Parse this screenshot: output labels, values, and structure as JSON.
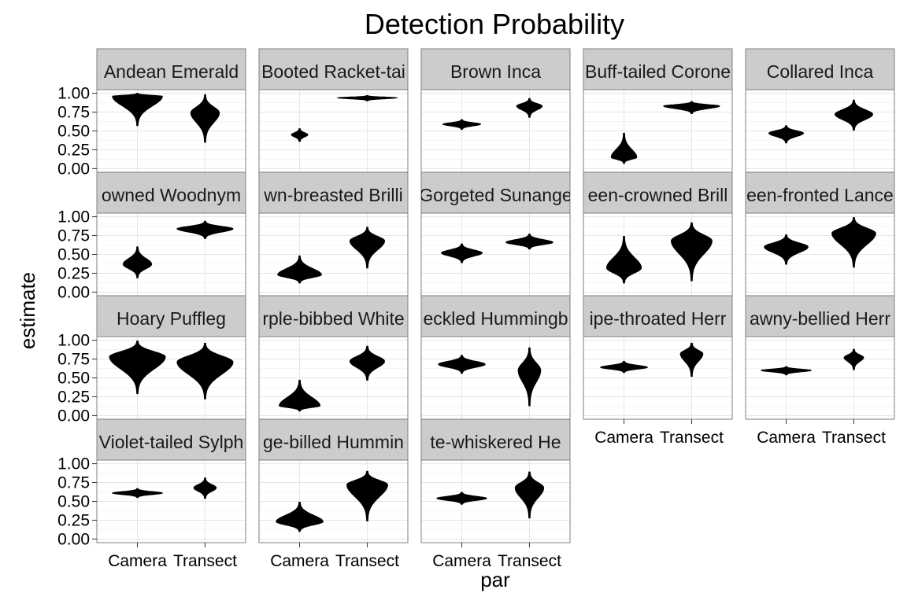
{
  "chart_data": {
    "type": "violin",
    "title": "Detection Probability",
    "xlabel": "par",
    "ylabel": "estimate",
    "categories": [
      "Camera",
      "Transect"
    ],
    "ylim": [
      0,
      1
    ],
    "y_ticks": [
      "0.00",
      "0.25",
      "0.50",
      "0.75",
      "1.00"
    ],
    "grid": true,
    "facets": [
      {
        "name": "Andean Emerald",
        "shown": "Andean Emerald",
        "violins": [
          {
            "center": 0.96,
            "min": 0.57,
            "max": 1.0,
            "halfwidth": 0.8
          },
          {
            "center": 0.74,
            "min": 0.35,
            "max": 0.98,
            "halfwidth": 0.45
          }
        ]
      },
      {
        "name": "Booted Racket-tail",
        "shown": "Booted Racket-tai",
        "violins": [
          {
            "center": 0.45,
            "min": 0.36,
            "max": 0.53,
            "halfwidth": 0.25
          },
          {
            "center": 0.94,
            "min": 0.9,
            "max": 0.97,
            "halfwidth": 0.95
          }
        ]
      },
      {
        "name": "Brown Inca",
        "shown": "Brown Inca",
        "violins": [
          {
            "center": 0.59,
            "min": 0.52,
            "max": 0.65,
            "halfwidth": 0.6
          },
          {
            "center": 0.83,
            "min": 0.68,
            "max": 0.93,
            "halfwidth": 0.4
          }
        ]
      },
      {
        "name": "Buff-tailed Coronet",
        "shown": "Buff-tailed Corone",
        "violins": [
          {
            "center": 0.15,
            "min": 0.07,
            "max": 0.47,
            "halfwidth": 0.4
          },
          {
            "center": 0.83,
            "min": 0.73,
            "max": 0.89,
            "halfwidth": 0.9
          }
        ]
      },
      {
        "name": "Collared Inca",
        "shown": "Collared Inca",
        "violins": [
          {
            "center": 0.47,
            "min": 0.34,
            "max": 0.57,
            "halfwidth": 0.55
          },
          {
            "center": 0.72,
            "min": 0.51,
            "max": 0.91,
            "halfwidth": 0.6
          }
        ]
      },
      {
        "name": "Crowned Woodnymph",
        "shown": "owned Woodnym",
        "violins": [
          {
            "center": 0.37,
            "min": 0.19,
            "max": 0.6,
            "halfwidth": 0.45
          },
          {
            "center": 0.84,
            "min": 0.71,
            "max": 0.94,
            "halfwidth": 0.9
          }
        ]
      },
      {
        "name": "Fawn-breasted Brilliant",
        "shown": "wn-breasted Brilli",
        "violins": [
          {
            "center": 0.23,
            "min": 0.12,
            "max": 0.48,
            "halfwidth": 0.7
          },
          {
            "center": 0.68,
            "min": 0.32,
            "max": 0.86,
            "halfwidth": 0.55
          }
        ]
      },
      {
        "name": "Gorgeted Sunangel",
        "shown": "Gorgeted Sunange",
        "violins": [
          {
            "center": 0.52,
            "min": 0.39,
            "max": 0.64,
            "halfwidth": 0.65
          },
          {
            "center": 0.66,
            "min": 0.57,
            "max": 0.77,
            "halfwidth": 0.75
          }
        ]
      },
      {
        "name": "Green-crowned Brilliant",
        "shown": "een-crowned Brill",
        "violins": [
          {
            "center": 0.32,
            "min": 0.12,
            "max": 0.74,
            "halfwidth": 0.55
          },
          {
            "center": 0.68,
            "min": 0.15,
            "max": 0.92,
            "halfwidth": 0.65
          }
        ]
      },
      {
        "name": "Green-fronted Lancebill",
        "shown": "een-fronted Lance",
        "violins": [
          {
            "center": 0.6,
            "min": 0.37,
            "max": 0.76,
            "halfwidth": 0.7
          },
          {
            "center": 0.78,
            "min": 0.33,
            "max": 0.99,
            "halfwidth": 0.7
          }
        ]
      },
      {
        "name": "Hoary Puffleg",
        "shown": "Hoary Puffleg",
        "violins": [
          {
            "center": 0.78,
            "min": 0.29,
            "max": 0.99,
            "halfwidth": 0.9
          },
          {
            "center": 0.71,
            "min": 0.22,
            "max": 0.96,
            "halfwidth": 0.9
          }
        ]
      },
      {
        "name": "Purple-bibbed Whitetip",
        "shown": "rple-bibbed White",
        "violins": [
          {
            "center": 0.13,
            "min": 0.06,
            "max": 0.47,
            "halfwidth": 0.65
          },
          {
            "center": 0.72,
            "min": 0.47,
            "max": 0.92,
            "halfwidth": 0.55
          }
        ]
      },
      {
        "name": "Speckled Hummingbird",
        "shown": "eckled Hummingb",
        "violins": [
          {
            "center": 0.68,
            "min": 0.56,
            "max": 0.8,
            "halfwidth": 0.75
          },
          {
            "center": 0.6,
            "min": 0.13,
            "max": 0.9,
            "halfwidth": 0.35
          }
        ]
      },
      {
        "name": "Stripe-throated Hermit",
        "shown": "ipe-throated Herr",
        "violins": [
          {
            "center": 0.64,
            "min": 0.57,
            "max": 0.72,
            "halfwidth": 0.75
          },
          {
            "center": 0.82,
            "min": 0.52,
            "max": 0.96,
            "halfwidth": 0.35
          }
        ]
      },
      {
        "name": "Tawny-bellied Hermit",
        "shown": "awny-bellied Herr",
        "violins": [
          {
            "center": 0.6,
            "min": 0.54,
            "max": 0.65,
            "halfwidth": 0.8
          },
          {
            "center": 0.77,
            "min": 0.61,
            "max": 0.88,
            "halfwidth": 0.3
          }
        ]
      },
      {
        "name": "Violet-tailed Sylph",
        "shown": "Violet-tailed Sylph",
        "violins": [
          {
            "center": 0.61,
            "min": 0.55,
            "max": 0.67,
            "halfwidth": 0.8
          },
          {
            "center": 0.68,
            "min": 0.54,
            "max": 0.81,
            "halfwidth": 0.35
          }
        ]
      },
      {
        "name": "Wedge-billed Hummingbird",
        "shown": "ge-billed Hummin",
        "violins": [
          {
            "center": 0.23,
            "min": 0.1,
            "max": 0.49,
            "halfwidth": 0.75
          },
          {
            "center": 0.72,
            "min": 0.24,
            "max": 0.9,
            "halfwidth": 0.65
          }
        ]
      },
      {
        "name": "White-whiskered Hermit",
        "shown": "te-whiskered He",
        "violins": [
          {
            "center": 0.54,
            "min": 0.46,
            "max": 0.62,
            "halfwidth": 0.8
          },
          {
            "center": 0.68,
            "min": 0.28,
            "max": 0.89,
            "halfwidth": 0.45
          }
        ]
      }
    ]
  }
}
